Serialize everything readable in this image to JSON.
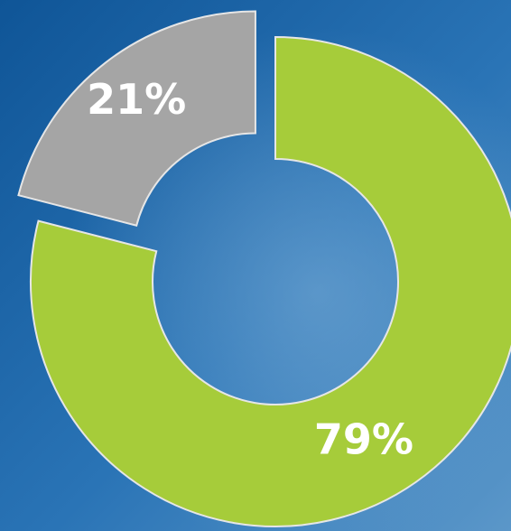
{
  "chart_data": {
    "type": "donut",
    "values": [
      79,
      21
    ],
    "value_labels": [
      "79%",
      "21%"
    ],
    "colors": [
      "#a6cc3a",
      "#a5a5a5"
    ],
    "exploded": [
      false,
      true
    ]
  }
}
